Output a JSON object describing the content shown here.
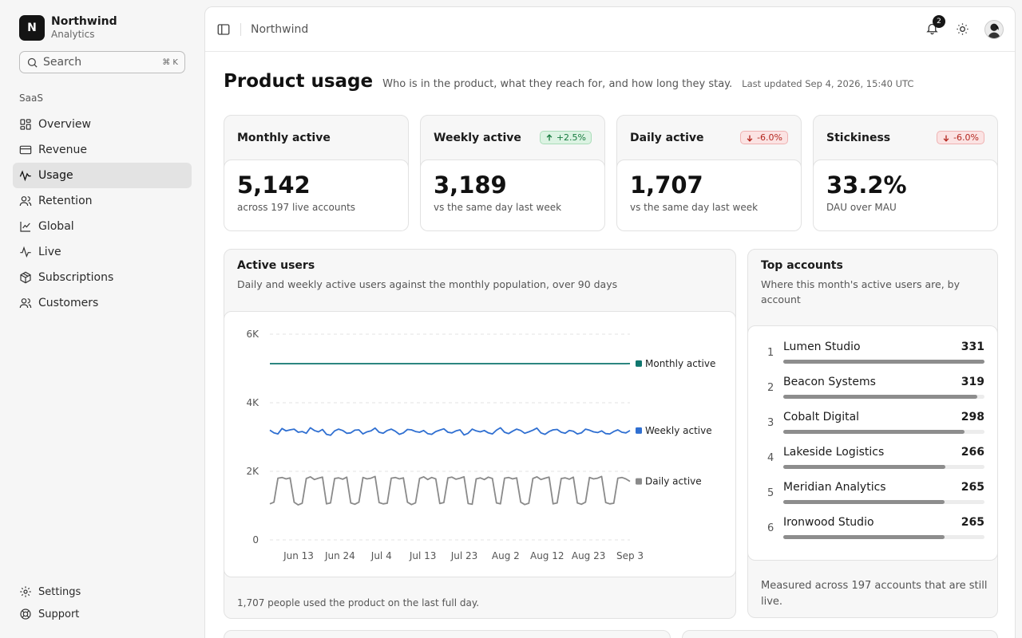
{
  "brand": {
    "initial": "N",
    "name": "Northwind",
    "subtitle": "Analytics"
  },
  "search": {
    "placeholder": "Search",
    "shortcut": "⌘ K"
  },
  "sidebar": {
    "section": "SaaS",
    "items": [
      {
        "label": "Overview",
        "icon": "grid-icon",
        "active": false
      },
      {
        "label": "Revenue",
        "icon": "credit-card-icon",
        "active": false
      },
      {
        "label": "Usage",
        "icon": "activity-icon",
        "active": true
      },
      {
        "label": "Retention",
        "icon": "users-icon",
        "active": false
      },
      {
        "label": "Global",
        "icon": "line-chart-icon",
        "active": false
      },
      {
        "label": "Live",
        "icon": "pulse-icon",
        "active": false
      },
      {
        "label": "Subscriptions",
        "icon": "package-icon",
        "active": false
      },
      {
        "label": "Customers",
        "icon": "users-icon",
        "active": false
      }
    ],
    "bottom": [
      {
        "label": "Settings",
        "icon": "gear-icon"
      },
      {
        "label": "Support",
        "icon": "lifebuoy-icon"
      }
    ]
  },
  "topbar": {
    "breadcrumb": "Northwind",
    "notifications": "2"
  },
  "page": {
    "title": "Product usage",
    "subtitle": "Who is in the product, what they reach for, and how long they stay.",
    "updated": "Last updated Sep 4, 2026, 15:40 UTC"
  },
  "kpis": [
    {
      "label": "Monthly active",
      "value": "5,142",
      "note": "across 197 live accounts",
      "badge": "",
      "trend": ""
    },
    {
      "label": "Weekly active",
      "value": "3,189",
      "note": "vs the same day last week",
      "badge": "+2.5%",
      "trend": "up"
    },
    {
      "label": "Daily active",
      "value": "1,707",
      "note": "vs the same day last week",
      "badge": "-6.0%",
      "trend": "down"
    },
    {
      "label": "Stickiness",
      "value": "33.2%",
      "note": "DAU over MAU",
      "badge": "-6.0%",
      "trend": "down"
    }
  ],
  "active_users": {
    "title": "Active users",
    "subtitle": "Daily and weekly active users against the monthly population, over 90 days",
    "footer": "1,707 people used the product on the last full day."
  },
  "colors": {
    "monthly": "#0f766e",
    "weekly": "#2f6fd1",
    "daily": "#8a8a8a"
  },
  "chart_data": {
    "type": "line",
    "title": "Active users",
    "x_ticks": [
      "Jun 13",
      "Jun 24",
      "Jul 4",
      "Jul 13",
      "Jul 23",
      "Aug 2",
      "Aug 12",
      "Aug 23",
      "Sep 3"
    ],
    "y_ticks": [
      "0",
      "2K",
      "4K",
      "6K"
    ],
    "ylim": [
      0,
      6000
    ],
    "grid": true,
    "legend": "inline-right",
    "series": [
      {
        "name": "Monthly active",
        "color": "#0f766e",
        "values": [
          5140,
          5140,
          5140,
          5140,
          5140,
          5140,
          5140,
          5140,
          5140,
          5140,
          5140,
          5140,
          5140,
          5140,
          5140,
          5140,
          5140,
          5140,
          5140,
          5140,
          5140,
          5140,
          5140,
          5140,
          5140,
          5140,
          5140,
          5140,
          5140,
          5140,
          5140,
          5140,
          5140,
          5140,
          5140,
          5140,
          5140,
          5140,
          5140,
          5140,
          5140,
          5140,
          5140,
          5140,
          5140,
          5140,
          5140,
          5140,
          5140,
          5140,
          5140,
          5140,
          5140,
          5140,
          5140,
          5140,
          5140,
          5140,
          5140,
          5140,
          5140,
          5140,
          5140,
          5140,
          5140,
          5140,
          5140,
          5140,
          5140,
          5140,
          5140,
          5140,
          5140,
          5140,
          5140,
          5140,
          5140,
          5140,
          5140,
          5140,
          5140,
          5140,
          5140,
          5140,
          5140,
          5140,
          5140,
          5140,
          5140,
          5142
        ]
      },
      {
        "name": "Weekly active",
        "color": "#2f6fd1",
        "values": [
          3200,
          3120,
          3090,
          3250,
          3180,
          3210,
          3230,
          3140,
          3160,
          3110,
          3270,
          3190,
          3150,
          3220,
          3080,
          3050,
          3180,
          3230,
          3190,
          3110,
          3120,
          3200,
          3210,
          3090,
          3150,
          3180,
          3260,
          3140,
          3110,
          3190,
          3230,
          3170,
          3080,
          3120,
          3220,
          3210,
          3160,
          3140,
          3190,
          3100,
          3080,
          3160,
          3200,
          3240,
          3140,
          3120,
          3180,
          3210,
          3060,
          3110,
          3230,
          3180,
          3150,
          3190,
          3120,
          3090,
          3200,
          3270,
          3140,
          3100,
          3170,
          3230,
          3190,
          3110,
          3150,
          3200,
          3260,
          3120,
          3080,
          3160,
          3210,
          3220,
          3140,
          3110,
          3190,
          3170,
          3090,
          3120,
          3230,
          3200,
          3150,
          3130,
          3180,
          3100,
          3090,
          3160,
          3210,
          3140,
          3120,
          3189
        ]
      },
      {
        "name": "Daily active",
        "color": "#8a8a8a",
        "values": [
          1050,
          1100,
          1800,
          1820,
          1780,
          1810,
          1100,
          1020,
          1070,
          1790,
          1840,
          1760,
          1800,
          1830,
          1050,
          1080,
          1790,
          1810,
          1770,
          1830,
          1080,
          1040,
          1100,
          1820,
          1780,
          1800,
          1850,
          1090,
          1050,
          1070,
          1800,
          1820,
          1780,
          1810,
          1100,
          1030,
          1080,
          1790,
          1840,
          1760,
          1820,
          1780,
          1060,
          1090,
          1810,
          1830,
          1770,
          1800,
          1840,
          1060,
          1040,
          1780,
          1810,
          1760,
          1830,
          1790,
          1080,
          1050,
          1800,
          1820,
          1780,
          1810,
          1100,
          1030,
          1070,
          1790,
          1840,
          1760,
          1800,
          1830,
          1050,
          1080,
          1790,
          1810,
          1770,
          1830,
          1080,
          1040,
          1100,
          1820,
          1780,
          1800,
          1850,
          1090,
          1050,
          1070,
          1800,
          1820,
          1780,
          1707
        ]
      }
    ]
  },
  "top_accounts": {
    "title": "Top accounts",
    "subtitle": "Where this month's active users are, by account",
    "items": [
      {
        "rank": "1",
        "name": "Lumen Studio",
        "value": "331",
        "fraction": 1.0
      },
      {
        "rank": "2",
        "name": "Beacon Systems",
        "value": "319",
        "fraction": 0.964
      },
      {
        "rank": "3",
        "name": "Cobalt Digital",
        "value": "298",
        "fraction": 0.9
      },
      {
        "rank": "4",
        "name": "Lakeside Logistics",
        "value": "266",
        "fraction": 0.804
      },
      {
        "rank": "5",
        "name": "Meridian Analytics",
        "value": "265",
        "fraction": 0.8
      },
      {
        "rank": "6",
        "name": "Ironwood Studio",
        "value": "265",
        "fraction": 0.8
      }
    ],
    "footer": "Measured across 197 accounts that are still live."
  }
}
